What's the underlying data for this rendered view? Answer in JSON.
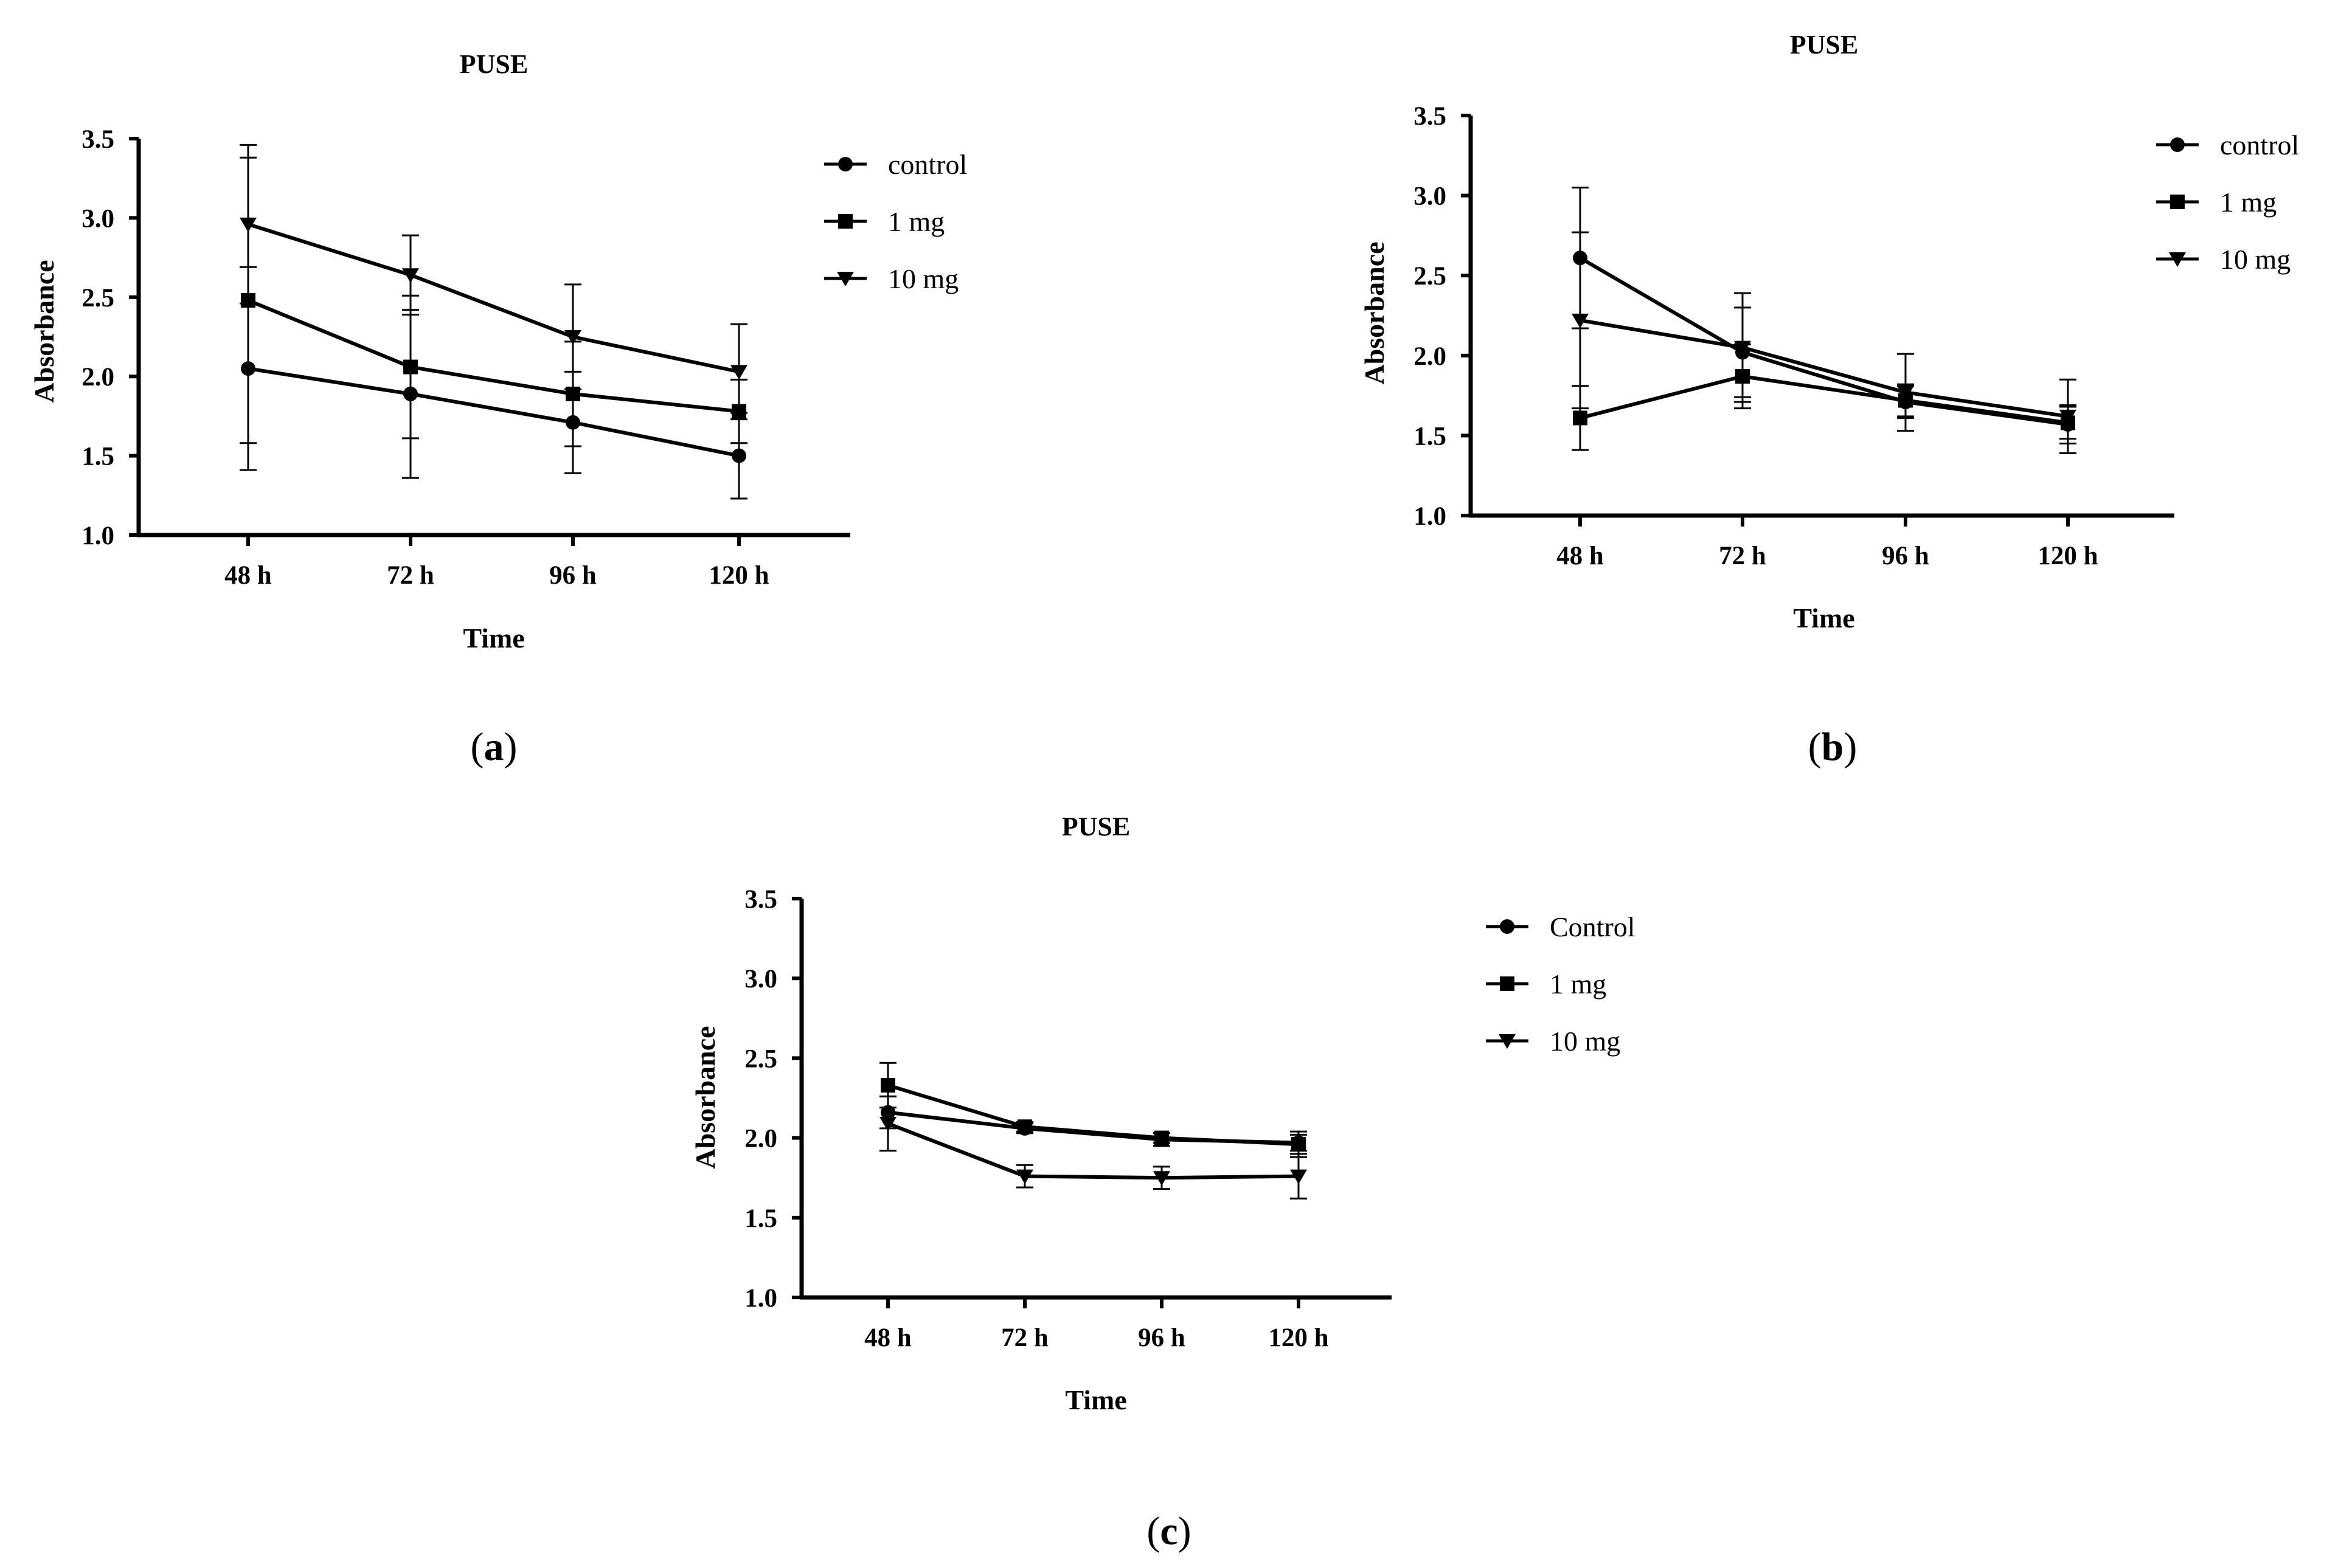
{
  "figure": {
    "panels": [
      {
        "label_open": "(",
        "label_letter": "a",
        "label_close": ")",
        "legend": [
          "control",
          "1 mg",
          "10 mg"
        ]
      },
      {
        "label_open": "(",
        "label_letter": "b",
        "label_close": ")",
        "legend": [
          "control",
          "1 mg",
          "10 mg"
        ]
      },
      {
        "label_open": "(",
        "label_letter": "c",
        "label_close": ")",
        "legend": [
          "Control",
          "1 mg",
          "10 mg"
        ]
      }
    ]
  },
  "chart_data": [
    {
      "type": "line",
      "title": "PUSE",
      "xlabel": "Time",
      "ylabel": "Absorbance",
      "categories": [
        "48 h",
        "72 h",
        "96 h",
        "120 h"
      ],
      "ylim": [
        1.0,
        3.5
      ],
      "yticks": [
        "1.0",
        "1.5",
        "2.0",
        "2.5",
        "3.0",
        "3.5"
      ],
      "legend_position": "right",
      "series": [
        {
          "name": "control",
          "marker": "circle",
          "values": [
            2.05,
            1.89,
            1.71,
            1.5
          ],
          "errors": [
            0.64,
            0.53,
            0.32,
            0.27
          ]
        },
        {
          "name": "1 mg",
          "marker": "square",
          "values": [
            2.48,
            2.06,
            1.89,
            1.78
          ],
          "errors": [
            0.9,
            0.45,
            0.33,
            0.2
          ]
        },
        {
          "name": "10 mg",
          "marker": "triangle-down",
          "values": [
            2.96,
            2.64,
            2.25,
            2.03
          ],
          "errors": [
            0.5,
            0.25,
            0.33,
            0.3
          ]
        }
      ]
    },
    {
      "type": "line",
      "title": "PUSE",
      "xlabel": "Time",
      "ylabel": "Absorbance",
      "categories": [
        "48 h",
        "72 h",
        "96 h",
        "120 h"
      ],
      "ylim": [
        1.0,
        3.5
      ],
      "yticks": [
        "1.0",
        "1.5",
        "2.0",
        "2.5",
        "3.0",
        "3.5"
      ],
      "legend_position": "top-right",
      "series": [
        {
          "name": "control",
          "marker": "circle",
          "values": [
            2.61,
            2.02,
            1.71,
            1.57
          ],
          "errors": [
            0.44,
            0.28,
            0.1,
            0.12
          ]
        },
        {
          "name": "1 mg",
          "marker": "square",
          "values": [
            1.61,
            1.87,
            1.72,
            1.58
          ],
          "errors": [
            0.2,
            0.2,
            0.1,
            0.1
          ]
        },
        {
          "name": "10 mg",
          "marker": "triangle-down",
          "values": [
            2.22,
            2.05,
            1.77,
            1.62
          ],
          "errors": [
            0.55,
            0.34,
            0.24,
            0.23
          ]
        }
      ]
    },
    {
      "type": "line",
      "title": "PUSE",
      "xlabel": "Time",
      "ylabel": "Absorbance",
      "categories": [
        "48 h",
        "72 h",
        "96 h",
        "120 h"
      ],
      "ylim": [
        1.0,
        3.5
      ],
      "yticks": [
        "1.0",
        "1.5",
        "2.0",
        "2.5",
        "3.0",
        "3.5"
      ],
      "legend_position": "right",
      "series": [
        {
          "name": "Control",
          "marker": "circle",
          "values": [
            2.16,
            2.06,
            1.99,
            1.97
          ],
          "errors": [
            0.1,
            0.03,
            0.04,
            0.05
          ]
        },
        {
          "name": "1 mg",
          "marker": "square",
          "values": [
            2.33,
            2.07,
            2.0,
            1.96
          ],
          "errors": [
            0.14,
            0.03,
            0.03,
            0.08
          ]
        },
        {
          "name": "10 mg",
          "marker": "triangle-down",
          "values": [
            2.09,
            1.76,
            1.75,
            1.76
          ],
          "errors": [
            0.17,
            0.07,
            0.07,
            0.14
          ]
        }
      ]
    }
  ]
}
